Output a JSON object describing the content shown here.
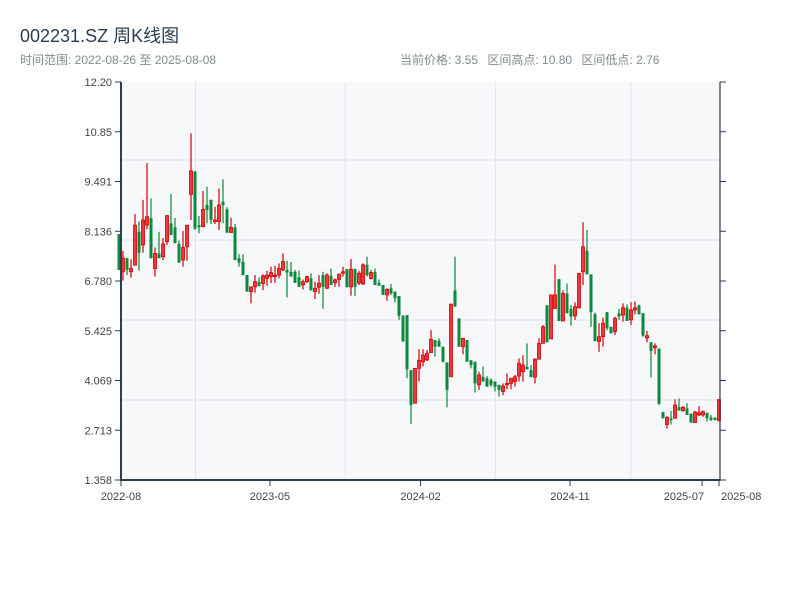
{
  "header": {
    "title": "002231.SZ 周K线图",
    "range_label": "时间范围: 2022-08-26 至 2025-08-08",
    "current_price": "当前价格: 3.55",
    "range_high": "区间高点: 10.80",
    "range_low": "区间低点: 2.76"
  },
  "colors": {
    "up": "#d40000",
    "up_fill": "#e83a3a",
    "down": "#0a8a3a",
    "axis": "#2c3e50",
    "plot_bg": "#f7f8fa",
    "grid": "#e2e4e8"
  },
  "chart_data": {
    "type": "candlestick",
    "title": "002231.SZ 周K线图",
    "ylim": [
      1.358,
      12.2
    ],
    "y_ticks": [
      "12.20",
      "10.85",
      "9.491",
      "8.136",
      "6.780",
      "5.425",
      "4.069",
      "2.713",
      "1.358"
    ],
    "x_ticks": [
      "2022-08",
      "2023-05",
      "2024-02",
      "2024-11",
      "2025-07",
      "2025-08"
    ],
    "x_range": [
      "2022-08-26",
      "2025-08-08"
    ],
    "grid": true,
    "up_color_meaning": "red = close > open, green = close < open",
    "ohlc_fields": [
      "open",
      "close",
      "low",
      "high"
    ],
    "ohlc": [
      [
        8.06,
        7.08,
        7.08,
        8.06
      ],
      [
        7.03,
        7.4,
        6.79,
        7.6
      ],
      [
        7.4,
        7.08,
        6.94,
        7.41
      ],
      [
        7.03,
        7.12,
        6.87,
        7.37
      ],
      [
        7.21,
        8.3,
        7.21,
        8.6
      ],
      [
        8.12,
        7.55,
        7.06,
        8.4
      ],
      [
        7.76,
        8.44,
        7.55,
        8.99
      ],
      [
        8.3,
        8.53,
        8.19,
        9.99
      ],
      [
        8.49,
        7.4,
        7.4,
        9.03
      ],
      [
        7.12,
        7.53,
        6.9,
        7.69
      ],
      [
        7.53,
        7.4,
        7.4,
        8.12
      ],
      [
        7.44,
        7.79,
        7.35,
        7.95
      ],
      [
        7.85,
        8.56,
        7.76,
        8.58
      ],
      [
        8.35,
        8.03,
        8.03,
        9.15
      ],
      [
        8.24,
        7.81,
        7.81,
        8.5
      ],
      [
        7.79,
        7.28,
        7.28,
        7.88
      ],
      [
        7.35,
        7.69,
        7.17,
        8.14
      ],
      [
        7.71,
        8.3,
        7.33,
        8.3
      ],
      [
        9.14,
        9.78,
        8.44,
        10.8
      ],
      [
        9.76,
        8.21,
        8.17,
        9.78
      ],
      [
        8.3,
        8.24,
        8.08,
        8.55
      ],
      [
        8.26,
        8.73,
        8.24,
        9.23
      ],
      [
        8.85,
        8.71,
        8.35,
        9.35
      ],
      [
        8.99,
        8.44,
        8.33,
        8.99
      ],
      [
        8.4,
        8.44,
        8.33,
        8.8
      ],
      [
        8.4,
        8.85,
        8.17,
        9.3
      ],
      [
        8.94,
        8.85,
        8.35,
        9.55
      ],
      [
        8.73,
        8.1,
        8.08,
        8.79
      ],
      [
        8.1,
        8.24,
        8.1,
        8.5
      ],
      [
        8.24,
        7.35,
        7.35,
        8.33
      ],
      [
        7.4,
        7.28,
        7.17,
        7.51
      ],
      [
        7.3,
        6.94,
        6.94,
        7.51
      ],
      [
        6.94,
        6.49,
        6.49,
        6.94
      ],
      [
        6.49,
        6.62,
        6.17,
        6.62
      ],
      [
        6.62,
        6.76,
        6.46,
        6.94
      ],
      [
        6.76,
        6.64,
        6.64,
        6.88
      ],
      [
        6.71,
        6.92,
        6.53,
        6.96
      ],
      [
        6.85,
        6.94,
        6.65,
        7.06
      ],
      [
        6.9,
        7.01,
        6.72,
        7.17
      ],
      [
        6.9,
        6.94,
        6.73,
        7.19
      ],
      [
        6.94,
        7.12,
        6.85,
        7.26
      ],
      [
        7.08,
        7.31,
        7.05,
        7.53
      ],
      [
        7.08,
        7.01,
        6.33,
        7.33
      ],
      [
        7.03,
        6.9,
        6.9,
        7.3
      ],
      [
        7.03,
        6.73,
        6.73,
        7.08
      ],
      [
        6.88,
        6.62,
        6.62,
        7.06
      ],
      [
        6.67,
        6.76,
        6.55,
        6.82
      ],
      [
        6.76,
        6.9,
        6.73,
        6.92
      ],
      [
        6.85,
        6.52,
        6.52,
        6.99
      ],
      [
        6.49,
        6.58,
        6.29,
        6.76
      ],
      [
        6.61,
        6.72,
        6.43,
        6.94
      ],
      [
        6.94,
        6.62,
        6.02,
        7.03
      ],
      [
        6.58,
        6.94,
        6.56,
        6.99
      ],
      [
        6.92,
        6.67,
        6.67,
        7.12
      ],
      [
        6.73,
        6.81,
        6.62,
        6.85
      ],
      [
        6.82,
        6.96,
        6.62,
        6.99
      ],
      [
        6.99,
        7.03,
        6.9,
        7.17
      ],
      [
        7.1,
        6.61,
        6.61,
        7.1
      ],
      [
        6.62,
        7.1,
        6.38,
        7.38
      ],
      [
        7.1,
        6.62,
        6.37,
        7.12
      ],
      [
        6.72,
        6.99,
        6.67,
        7.06
      ],
      [
        6.7,
        7.22,
        6.67,
        7.26
      ],
      [
        7.22,
        6.94,
        6.9,
        7.44
      ],
      [
        6.85,
        7.01,
        6.82,
        7.08
      ],
      [
        7.03,
        6.67,
        6.67,
        7.12
      ],
      [
        6.73,
        6.65,
        6.65,
        6.82
      ],
      [
        6.67,
        6.4,
        6.4,
        6.67
      ],
      [
        6.4,
        6.55,
        6.24,
        6.58
      ],
      [
        6.58,
        6.44,
        6.4,
        6.7
      ],
      [
        6.49,
        6.31,
        6.19,
        6.49
      ],
      [
        6.37,
        5.83,
        5.72,
        6.37
      ],
      [
        5.83,
        5.13,
        5.13,
        5.85
      ],
      [
        5.85,
        4.37,
        4.13,
        5.85
      ],
      [
        4.35,
        3.4,
        2.88,
        4.35
      ],
      [
        3.45,
        4.4,
        3.45,
        4.4
      ],
      [
        4.4,
        4.62,
        4.04,
        4.92
      ],
      [
        4.58,
        4.76,
        4.45,
        4.92
      ],
      [
        4.63,
        4.81,
        4.6,
        4.9
      ],
      [
        4.83,
        5.19,
        4.83,
        5.44
      ],
      [
        5.17,
        4.99,
        4.72,
        5.17
      ],
      [
        5.15,
        4.99,
        4.99,
        5.22
      ],
      [
        4.99,
        4.58,
        4.56,
        4.99
      ],
      [
        4.56,
        3.81,
        3.34,
        4.56
      ],
      [
        4.17,
        6.15,
        4.17,
        6.15
      ],
      [
        6.52,
        6.08,
        6.08,
        7.44
      ],
      [
        5.76,
        4.99,
        4.99,
        5.76
      ],
      [
        4.99,
        5.22,
        4.78,
        5.22
      ],
      [
        5.17,
        4.58,
        4.58,
        5.17
      ],
      [
        4.62,
        4.49,
        4.4,
        4.62
      ],
      [
        4.58,
        3.99,
        3.74,
        4.58
      ],
      [
        3.95,
        4.22,
        3.81,
        4.31
      ],
      [
        4.17,
        4.04,
        4.04,
        4.45
      ],
      [
        4.13,
        3.9,
        3.9,
        4.19
      ],
      [
        4.08,
        3.95,
        3.9,
        4.13
      ],
      [
        4.04,
        3.9,
        3.77,
        4.04
      ],
      [
        3.95,
        3.81,
        3.63,
        3.95
      ],
      [
        3.77,
        3.92,
        3.67,
        3.99
      ],
      [
        3.95,
        3.99,
        3.83,
        4.26
      ],
      [
        3.99,
        4.13,
        3.83,
        4.13
      ],
      [
        4.04,
        4.17,
        3.9,
        4.22
      ],
      [
        4.19,
        4.54,
        4.04,
        4.67
      ],
      [
        4.31,
        4.49,
        4.04,
        4.76
      ],
      [
        4.44,
        4.37,
        4.37,
        5.08
      ],
      [
        4.35,
        4.16,
        4.16,
        4.49
      ],
      [
        4.16,
        4.65,
        3.99,
        4.67
      ],
      [
        4.65,
        5.08,
        4.65,
        5.22
      ],
      [
        5.08,
        5.53,
        5.08,
        5.58
      ],
      [
        6.11,
        5.11,
        5.11,
        6.13
      ],
      [
        5.2,
        6.4,
        5.2,
        6.4
      ],
      [
        6.03,
        6.4,
        6.03,
        7.23
      ],
      [
        6.83,
        5.69,
        5.69,
        6.83
      ],
      [
        5.69,
        6.44,
        5.69,
        6.53
      ],
      [
        6.44,
        5.9,
        5.9,
        6.71
      ],
      [
        6.02,
        5.81,
        5.56,
        6.13
      ],
      [
        5.83,
        6.08,
        5.72,
        6.2
      ],
      [
        6.05,
        6.99,
        6.03,
        6.99
      ],
      [
        7.03,
        7.71,
        6.67,
        8.38
      ],
      [
        7.6,
        6.96,
        6.96,
        8.17
      ],
      [
        6.96,
        5.93,
        5.53,
        6.96
      ],
      [
        5.87,
        5.14,
        5.14,
        5.92
      ],
      [
        5.13,
        5.26,
        4.85,
        5.63
      ],
      [
        5.26,
        5.63,
        4.99,
        5.78
      ],
      [
        5.93,
        5.49,
        5.44,
        5.93
      ],
      [
        5.53,
        5.35,
        5.35,
        5.53
      ],
      [
        5.4,
        5.76,
        5.31,
        5.81
      ],
      [
        5.9,
        5.81,
        5.72,
        6.02
      ],
      [
        5.85,
        6.05,
        5.67,
        6.17
      ],
      [
        6.05,
        5.69,
        5.69,
        6.14
      ],
      [
        5.72,
        5.99,
        5.58,
        6.2
      ],
      [
        5.99,
        6.05,
        5.87,
        6.22
      ],
      [
        6.11,
        5.87,
        5.87,
        6.14
      ],
      [
        5.9,
        5.29,
        5.26,
        5.9
      ],
      [
        5.23,
        5.29,
        5.11,
        5.42
      ],
      [
        5.11,
        4.87,
        4.15,
        5.11
      ],
      [
        4.96,
        5.01,
        4.78,
        5.08
      ],
      [
        4.94,
        3.43,
        3.4,
        4.94
      ],
      [
        3.21,
        3.04,
        3.04,
        3.21
      ],
      [
        2.87,
        3.06,
        2.76,
        3.1
      ],
      [
        3.04,
        2.99,
        2.87,
        3.24
      ],
      [
        3.04,
        3.4,
        3.04,
        3.56
      ],
      [
        3.34,
        3.25,
        3.25,
        3.58
      ],
      [
        3.25,
        3.34,
        3.22,
        3.37
      ],
      [
        3.31,
        3.13,
        3.13,
        3.45
      ],
      [
        3.16,
        2.92,
        2.92,
        3.18
      ],
      [
        2.92,
        3.21,
        2.92,
        3.24
      ],
      [
        3.13,
        3.19,
        3.1,
        3.37
      ],
      [
        3.13,
        3.22,
        3.08,
        3.25
      ],
      [
        3.19,
        3.04,
        2.95,
        3.19
      ],
      [
        3.06,
        2.99,
        2.97,
        3.13
      ],
      [
        3.06,
        2.99,
        2.99,
        3.06
      ],
      [
        2.97,
        3.55,
        2.97,
        3.55
      ]
    ]
  }
}
